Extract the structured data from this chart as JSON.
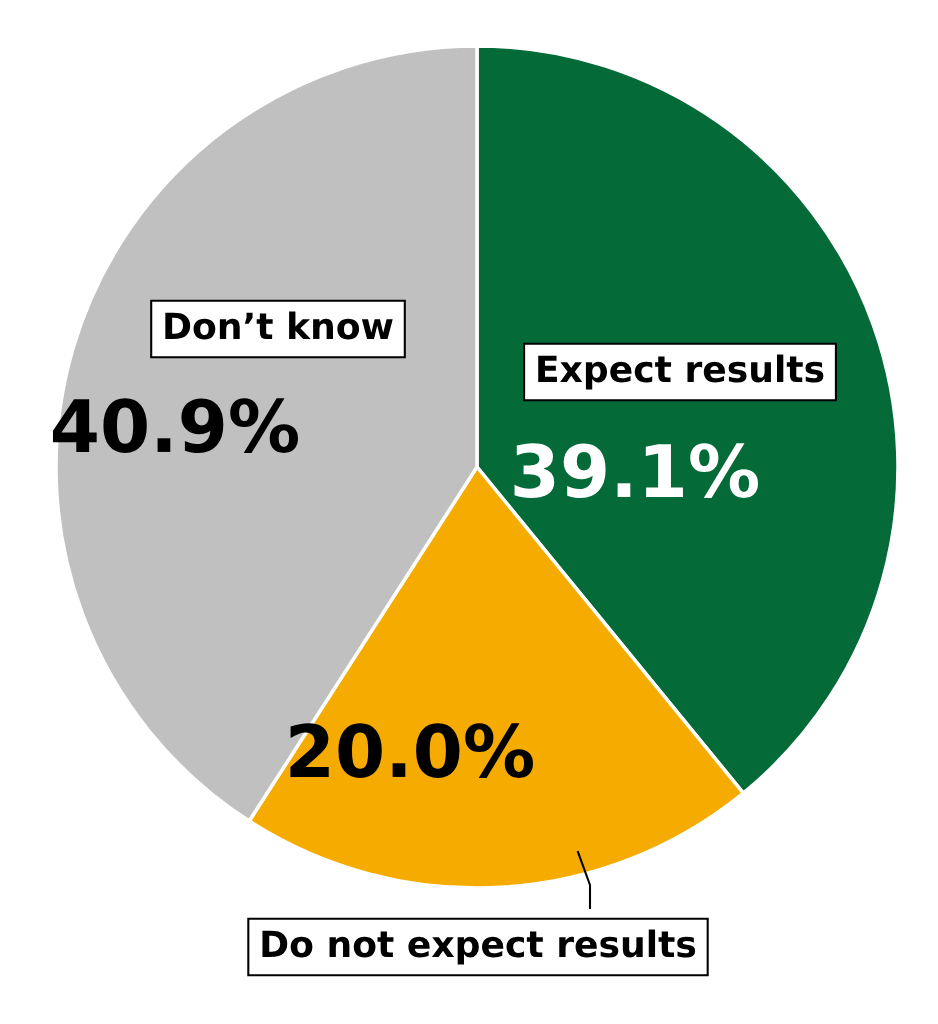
{
  "chart_data": {
    "type": "pie",
    "categories": [
      "Expect results",
      "Do not expect results",
      "Don’t know"
    ],
    "values": [
      39.1,
      20.0,
      40.9
    ],
    "colors": [
      "#046a38",
      "#f5ab00",
      "#bfc0bf"
    ],
    "value_labels": [
      "39.1%",
      "20.0%",
      "40.9%"
    ],
    "legend": false
  }
}
